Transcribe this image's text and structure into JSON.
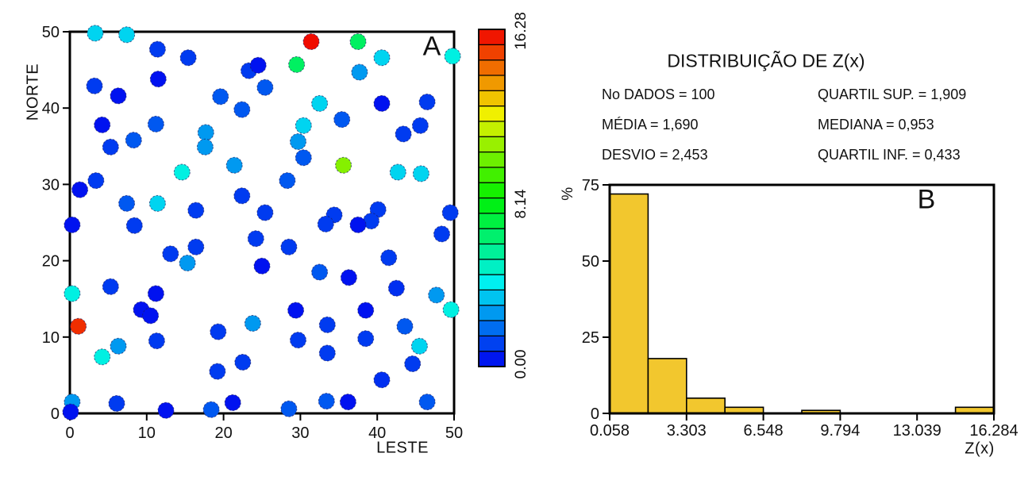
{
  "panel_a": {
    "label": "A",
    "x_axis": {
      "title": "LESTE"
    },
    "y_axis": {
      "title": "NORTE"
    },
    "colorbar": {
      "max_label": "16.28",
      "mid_label": "8.14",
      "min_label": "0.00"
    }
  },
  "panel_b": {
    "label": "B",
    "title": "DISTRIBUIÇÃO DE Z(x)",
    "stats": [
      "No DADOS = 100",
      "QUARTIL SUP. = 1,909",
      "MÉDIA = 1,690",
      "MEDIANA = 0,953",
      "DESVIO = 2,453",
      "QUARTIL INF. = 0,433"
    ],
    "x_axis": {
      "title": "Z(x)"
    },
    "y_axis": {
      "title": "%"
    }
  },
  "colors": {
    "bar_fill": "#F2C72E",
    "frame": "#000000",
    "background": "#FFFFFF",
    "point_edge": "#1a1a5e"
  },
  "chart_data": [
    {
      "type": "scatter",
      "xlabel": "LESTE",
      "ylabel": "NORTE",
      "xlim": [
        0,
        50
      ],
      "ylim": [
        0,
        50
      ],
      "x_ticks": [
        0,
        10,
        20,
        30,
        40,
        50
      ],
      "y_ticks": [
        0,
        10,
        20,
        30,
        40,
        50
      ],
      "color_scale": {
        "min": 0.0,
        "mid": 8.14,
        "max": 16.28,
        "segments": 22,
        "palette": "rainbow"
      },
      "point_radius": 10,
      "points": [
        [
          3.3,
          49.8,
          3.6
        ],
        [
          7.4,
          49.6,
          3.6
        ],
        [
          11.4,
          47.7,
          1.0
        ],
        [
          15.4,
          46.6,
          1.0
        ],
        [
          23.3,
          44.9,
          1.0
        ],
        [
          11.5,
          43.8,
          0.3
        ],
        [
          3.2,
          42.9,
          1.0
        ],
        [
          6.3,
          41.6,
          0.3
        ],
        [
          19.6,
          41.5,
          1.5
        ],
        [
          22.4,
          39.8,
          1.5
        ],
        [
          4.2,
          37.8,
          0.3
        ],
        [
          11.2,
          37.9,
          1.5
        ],
        [
          8.3,
          35.8,
          1.5
        ],
        [
          5.3,
          34.9,
          1.0
        ],
        [
          17.7,
          36.8,
          2.6
        ],
        [
          17.6,
          34.9,
          2.6
        ],
        [
          21.4,
          32.5,
          2.6
        ],
        [
          14.6,
          31.6,
          4.3
        ],
        [
          3.4,
          30.5,
          1.0
        ],
        [
          1.3,
          29.3,
          0.3
        ],
        [
          7.4,
          27.5,
          1.5
        ],
        [
          11.4,
          27.5,
          3.6
        ],
        [
          16.4,
          26.6,
          1.0
        ],
        [
          22.4,
          28.5,
          1.0
        ],
        [
          0.3,
          24.7,
          0.3
        ],
        [
          8.4,
          24.6,
          1.0
        ],
        [
          31.4,
          48.7,
          16.1
        ],
        [
          37.5,
          48.7,
          6.5
        ],
        [
          29.5,
          45.7,
          6.5
        ],
        [
          40.6,
          46.6,
          3.6
        ],
        [
          49.8,
          46.8,
          4.3
        ],
        [
          24.5,
          45.6,
          0.3
        ],
        [
          37.7,
          44.7,
          2.6
        ],
        [
          25.4,
          42.7,
          1.5
        ],
        [
          32.5,
          40.6,
          3.6
        ],
        [
          40.6,
          40.6,
          0.3
        ],
        [
          46.5,
          40.8,
          1.0
        ],
        [
          35.4,
          38.5,
          1.5
        ],
        [
          30.4,
          37.7,
          3.6
        ],
        [
          43.4,
          36.6,
          1.0
        ],
        [
          45.6,
          37.7,
          1.0
        ],
        [
          29.7,
          35.6,
          2.6
        ],
        [
          30.4,
          33.5,
          1.5
        ],
        [
          35.6,
          32.5,
          10.4
        ],
        [
          42.7,
          31.6,
          3.6
        ],
        [
          45.7,
          31.4,
          3.6
        ],
        [
          28.3,
          30.5,
          1.5
        ],
        [
          25.4,
          26.3,
          1.0
        ],
        [
          34.4,
          26.0,
          1.0
        ],
        [
          33.3,
          24.8,
          1.0
        ],
        [
          40.1,
          26.7,
          1.0
        ],
        [
          39.2,
          25.2,
          1.0
        ],
        [
          37.5,
          24.7,
          0.3
        ],
        [
          49.5,
          26.3,
          1.0
        ],
        [
          13.1,
          20.9,
          1.0
        ],
        [
          16.4,
          21.8,
          1.0
        ],
        [
          15.3,
          19.7,
          2.6
        ],
        [
          24.2,
          22.9,
          1.0
        ],
        [
          25.0,
          19.3,
          0.3
        ],
        [
          5.3,
          16.6,
          1.0
        ],
        [
          0.3,
          15.7,
          4.3
        ],
        [
          11.2,
          15.7,
          0.3
        ],
        [
          9.3,
          13.6,
          0.3
        ],
        [
          10.5,
          12.8,
          0.3
        ],
        [
          1.1,
          11.4,
          15.5
        ],
        [
          11.3,
          9.5,
          1.0
        ],
        [
          6.3,
          8.8,
          2.6
        ],
        [
          4.2,
          7.4,
          4.3
        ],
        [
          19.2,
          5.5,
          1.0
        ],
        [
          22.5,
          6.7,
          1.0
        ],
        [
          19.3,
          10.7,
          1.0
        ],
        [
          23.8,
          11.8,
          2.6
        ],
        [
          0.3,
          1.5,
          2.6
        ],
        [
          0.1,
          0.2,
          0.3
        ],
        [
          6.1,
          1.3,
          1.0
        ],
        [
          12.5,
          0.4,
          0.3
        ],
        [
          18.4,
          0.5,
          1.5
        ],
        [
          21.2,
          1.4,
          0.3
        ],
        [
          48.4,
          23.5,
          1.0
        ],
        [
          28.5,
          21.8,
          1.0
        ],
        [
          32.5,
          18.5,
          1.5
        ],
        [
          36.3,
          17.8,
          0.3
        ],
        [
          41.5,
          20.4,
          1.0
        ],
        [
          42.5,
          16.4,
          0.8
        ],
        [
          47.7,
          15.5,
          2.6
        ],
        [
          49.6,
          13.6,
          4.3
        ],
        [
          29.4,
          13.5,
          0.3
        ],
        [
          38.5,
          13.5,
          0.3
        ],
        [
          33.5,
          11.6,
          1.0
        ],
        [
          43.6,
          11.4,
          1.5
        ],
        [
          29.7,
          9.6,
          1.0
        ],
        [
          38.5,
          9.8,
          1.0
        ],
        [
          45.5,
          8.8,
          3.6
        ],
        [
          33.5,
          7.9,
          1.0
        ],
        [
          44.6,
          6.5,
          1.0
        ],
        [
          40.6,
          4.4,
          0.8
        ],
        [
          33.4,
          1.6,
          1.5
        ],
        [
          36.2,
          1.5,
          0.3
        ],
        [
          28.5,
          0.6,
          1.5
        ],
        [
          46.5,
          1.5,
          1.5
        ]
      ]
    },
    {
      "type": "histogram",
      "title": "DISTRIBUIÇÃO DE Z(x)",
      "xlabel": "Z(x)",
      "ylabel": "%",
      "bin_start": 0.058,
      "bin_width": 1.6226,
      "values": [
        72,
        18,
        5,
        2,
        0,
        1,
        0,
        0,
        0,
        2
      ],
      "x_ticks": [
        0.058,
        3.303,
        6.548,
        9.794,
        13.039,
        16.284
      ],
      "y_ticks": [
        0,
        25,
        50,
        75
      ],
      "xlim": [
        0.058,
        16.284
      ],
      "ylim": [
        0,
        75
      ],
      "n_data": 100,
      "mean": 1.69,
      "std_dev": 2.453,
      "median": 0.953,
      "upper_quartile": 1.909,
      "lower_quartile": 0.433
    }
  ]
}
